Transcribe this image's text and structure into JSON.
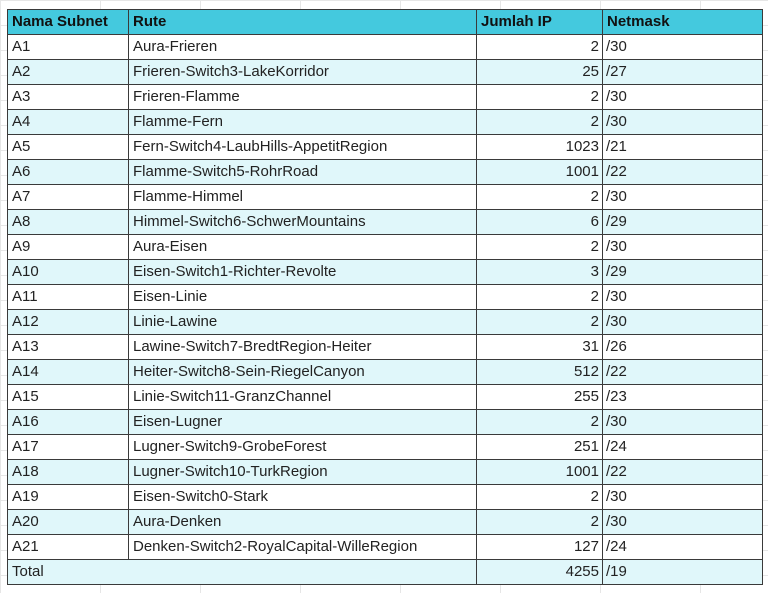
{
  "table": {
    "headers": [
      "Nama Subnet",
      "Rute",
      "Jumlah IP",
      "Netmask"
    ],
    "rows": [
      {
        "name": "A1",
        "route": "Aura-Frieren",
        "ip": "2",
        "mask": "/30"
      },
      {
        "name": "A2",
        "route": "Frieren-Switch3-LakeKorridor",
        "ip": "25",
        "mask": "/27"
      },
      {
        "name": "A3",
        "route": "Frieren-Flamme",
        "ip": "2",
        "mask": "/30"
      },
      {
        "name": "A4",
        "route": "Flamme-Fern",
        "ip": "2",
        "mask": "/30"
      },
      {
        "name": "A5",
        "route": "Fern-Switch4-LaubHills-AppetitRegion",
        "ip": "1023",
        "mask": "/21"
      },
      {
        "name": "A6",
        "route": "Flamme-Switch5-RohrRoad",
        "ip": "1001",
        "mask": "/22"
      },
      {
        "name": "A7",
        "route": "Flamme-Himmel",
        "ip": "2",
        "mask": "/30"
      },
      {
        "name": "A8",
        "route": "Himmel-Switch6-SchwerMountains",
        "ip": "6",
        "mask": "/29"
      },
      {
        "name": "A9",
        "route": "Aura-Eisen",
        "ip": "2",
        "mask": "/30"
      },
      {
        "name": "A10",
        "route": "Eisen-Switch1-Richter-Revolte",
        "ip": "3",
        "mask": "/29"
      },
      {
        "name": "A11",
        "route": "Eisen-Linie",
        "ip": "2",
        "mask": "/30"
      },
      {
        "name": "A12",
        "route": "Linie-Lawine",
        "ip": "2",
        "mask": "/30"
      },
      {
        "name": "A13",
        "route": "Lawine-Switch7-BredtRegion-Heiter",
        "ip": "31",
        "mask": "/26"
      },
      {
        "name": "A14",
        "route": "Heiter-Switch8-Sein-RiegelCanyon",
        "ip": "512",
        "mask": "/22"
      },
      {
        "name": "A15",
        "route": "Linie-Switch11-GranzChannel",
        "ip": "255",
        "mask": "/23"
      },
      {
        "name": "A16",
        "route": "Eisen-Lugner",
        "ip": "2",
        "mask": "/30"
      },
      {
        "name": "A17",
        "route": "Lugner-Switch9-GrobeForest",
        "ip": "251",
        "mask": "/24"
      },
      {
        "name": "A18",
        "route": "Lugner-Switch10-TurkRegion",
        "ip": "1001",
        "mask": "/22"
      },
      {
        "name": "A19",
        "route": "Eisen-Switch0-Stark",
        "ip": "2",
        "mask": "/30"
      },
      {
        "name": "A20",
        "route": "Aura-Denken",
        "ip": "2",
        "mask": "/30"
      },
      {
        "name": "A21",
        "route": "Denken-Switch2-RoyalCapital-WilleRegion",
        "ip": "127",
        "mask": "/24"
      }
    ],
    "total": {
      "label": "Total",
      "ip": "4255",
      "mask": "/19"
    }
  },
  "colors": {
    "header_bg": "#44c9de",
    "band_bg": "#e0f7fa",
    "row_bg": "#ffffff",
    "border": "#3a3a3a"
  }
}
